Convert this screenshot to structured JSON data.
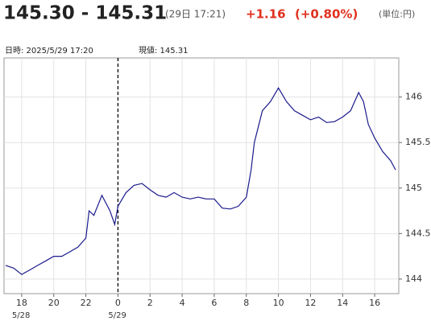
{
  "header": {
    "price": "145.30 - 145.31",
    "time": "(29日 17:21)",
    "change": "+1.16",
    "change_pct": "(+0.80%)",
    "unit": "(単位:円)"
  },
  "info": {
    "datetime": "日時: 2025/5/29  17:20",
    "current": "現値: 145.31"
  },
  "chart_data": {
    "type": "line",
    "x": [
      17.0,
      17.5,
      18.0,
      18.5,
      19.0,
      19.5,
      20.0,
      20.5,
      21.0,
      21.5,
      22.0,
      22.2,
      22.5,
      23.0,
      23.5,
      23.8,
      24.0,
      24.5,
      25.0,
      25.5,
      26.0,
      26.5,
      27.0,
      27.5,
      28.0,
      28.5,
      29.0,
      29.5,
      30.0,
      30.5,
      31.0,
      31.5,
      32.0,
      32.3,
      32.5,
      33.0,
      33.5,
      34.0,
      34.5,
      35.0,
      35.5,
      36.0,
      36.5,
      37.0,
      37.5,
      38.0,
      38.5,
      39.0,
      39.3,
      39.6,
      40.0,
      40.5,
      41.0,
      41.3
    ],
    "series": [
      {
        "color": "#1a1a8c",
        "values": [
          144.15,
          144.12,
          144.05,
          144.1,
          144.15,
          144.2,
          144.25,
          144.25,
          144.3,
          144.35,
          144.45,
          144.75,
          144.7,
          144.92,
          144.75,
          144.6,
          144.8,
          144.95,
          145.03,
          145.05,
          144.98,
          144.92,
          144.9,
          144.95,
          144.9,
          144.88,
          144.9,
          144.88,
          144.88,
          144.78,
          144.77,
          144.8,
          144.9,
          145.2,
          145.5,
          145.85,
          145.95,
          146.1,
          145.95,
          145.85,
          145.8,
          145.75,
          145.78,
          145.72,
          145.73,
          145.78,
          145.85,
          146.05,
          145.95,
          145.7,
          145.55,
          145.4,
          145.3,
          145.2
        ]
      }
    ],
    "xlim": [
      16.9,
      41.5
    ],
    "xticks": [
      {
        "value": 18,
        "label": "18"
      },
      {
        "value": 20,
        "label": "20"
      },
      {
        "value": 22,
        "label": "22"
      },
      {
        "value": 24,
        "label": "0"
      },
      {
        "value": 26,
        "label": "2"
      },
      {
        "value": 28,
        "label": "4"
      },
      {
        "value": 30,
        "label": "6"
      },
      {
        "value": 32,
        "label": "8"
      },
      {
        "value": 34,
        "label": "10"
      },
      {
        "value": 36,
        "label": "12"
      },
      {
        "value": 38,
        "label": "14"
      },
      {
        "value": 40,
        "label": "16"
      }
    ],
    "xdates": [
      {
        "value": 18,
        "label": "5/28"
      },
      {
        "value": 24,
        "label": "5/29"
      }
    ],
    "cursor_x": 24,
    "ylim": [
      143.84,
      146.43
    ],
    "yticks": [
      144,
      144.5,
      145,
      145.5,
      146
    ],
    "grid": true
  }
}
